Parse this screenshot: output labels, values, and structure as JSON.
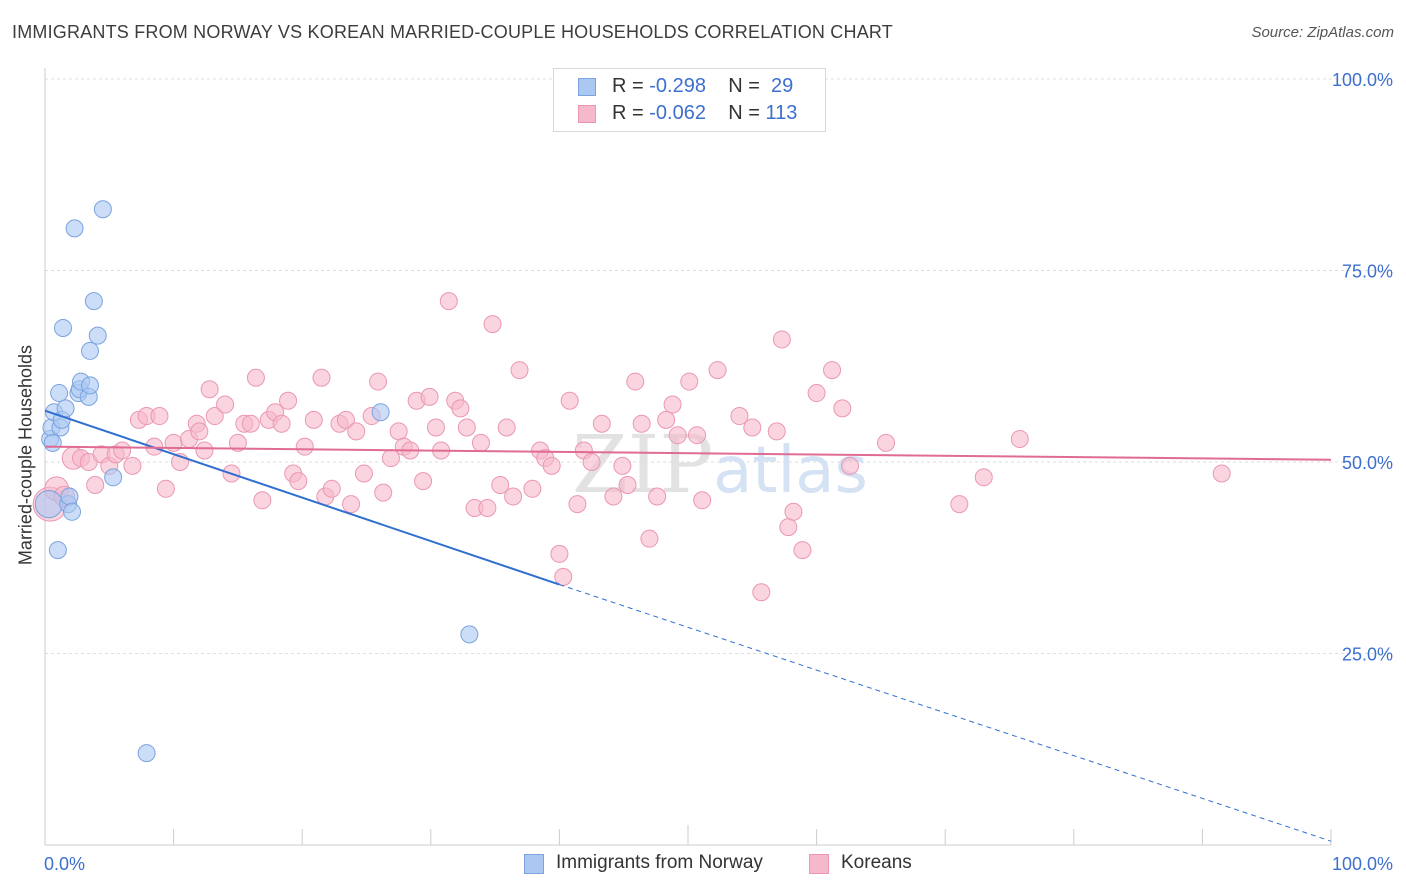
{
  "title": "IMMIGRANTS FROM NORWAY VS KOREAN MARRIED-COUPLE HOUSEHOLDS CORRELATION CHART",
  "source": "Source: ZipAtlas.com",
  "watermark": "ZIPatlas",
  "legend": {
    "rows": [
      {
        "r_label": "R =",
        "r_value": "-0.298",
        "n_label": "N =",
        "n_value": "29"
      },
      {
        "r_label": "R =",
        "r_value": "-0.062",
        "n_label": "N =",
        "n_value": "113"
      }
    ]
  },
  "bottom_legend": {
    "norway": "Immigrants from Norway",
    "koreans": "Koreans"
  },
  "colors": {
    "norway_fill": "#aac8f2",
    "norway_stroke": "#7aa3df",
    "norway_line": "#2f6fd0",
    "korean_fill": "#f6b9cc",
    "korean_stroke": "#eb97b2",
    "korean_line": "#e06c93",
    "tick_label": "#3d6fce",
    "grid": "#dddddd"
  },
  "chart_data": {
    "type": "scatter",
    "xlabel": "",
    "ylabel": "Married-couple Households",
    "x_range": [
      0,
      100
    ],
    "y_range": [
      0,
      100
    ],
    "x_tick_labels": [
      "0.0%",
      "100.0%"
    ],
    "y_tick_labels": [
      "100.0%",
      "75.0%",
      "50.0%",
      "25.0%"
    ],
    "y_ticks": [
      100,
      75,
      50,
      25
    ],
    "grid": true,
    "legend_position": "top-center",
    "series": [
      {
        "name": "Immigrants from Norway",
        "key": "norway",
        "r": -0.298,
        "n": 29,
        "points": [
          [
            0.3,
            44.5,
            1.6
          ],
          [
            0.4,
            53.0,
            1
          ],
          [
            0.5,
            54.5,
            1
          ],
          [
            0.6,
            52.5,
            1
          ],
          [
            0.7,
            56.5,
            1
          ],
          [
            1.0,
            38.5,
            1
          ],
          [
            1.1,
            59.0,
            1
          ],
          [
            1.2,
            54.5,
            1
          ],
          [
            1.3,
            55.5,
            1
          ],
          [
            1.4,
            67.5,
            1
          ],
          [
            1.6,
            57.0,
            1
          ],
          [
            1.8,
            44.5,
            1
          ],
          [
            1.9,
            45.5,
            1
          ],
          [
            2.1,
            43.5,
            1
          ],
          [
            2.3,
            80.5,
            1
          ],
          [
            2.6,
            59.0,
            1
          ],
          [
            2.7,
            59.5,
            1
          ],
          [
            2.8,
            60.5,
            1
          ],
          [
            3.4,
            58.5,
            1
          ],
          [
            3.5,
            60.0,
            1
          ],
          [
            3.5,
            64.5,
            1
          ],
          [
            3.8,
            71.0,
            1
          ],
          [
            4.1,
            66.5,
            1
          ],
          [
            4.5,
            83.0,
            1
          ],
          [
            5.3,
            48.0,
            1
          ],
          [
            7.9,
            12.0,
            1
          ],
          [
            26.1,
            56.5,
            1
          ],
          [
            33.0,
            27.5,
            1
          ]
        ]
      },
      {
        "name": "Koreans",
        "key": "korean",
        "r": -0.062,
        "n": 113,
        "points": [
          [
            0.4,
            44.5,
            2.0
          ],
          [
            0.9,
            46.5,
            1.4
          ],
          [
            1.5,
            45.5,
            1.2
          ],
          [
            2.2,
            50.5,
            1.3
          ],
          [
            2.8,
            50.5,
            1
          ],
          [
            3.4,
            50.0,
            1
          ],
          [
            3.9,
            47.0,
            1
          ],
          [
            4.4,
            51.0,
            1
          ],
          [
            5.0,
            49.5,
            1
          ],
          [
            5.5,
            51.0,
            1
          ],
          [
            6.0,
            51.5,
            1
          ],
          [
            6.8,
            49.5,
            1
          ],
          [
            7.3,
            55.5,
            1
          ],
          [
            7.9,
            56.0,
            1
          ],
          [
            8.5,
            52.0,
            1
          ],
          [
            8.9,
            56.0,
            1
          ],
          [
            9.4,
            46.5,
            1
          ],
          [
            10.0,
            52.5,
            1
          ],
          [
            10.5,
            50.0,
            1
          ],
          [
            11.2,
            53.0,
            1
          ],
          [
            11.8,
            55.0,
            1
          ],
          [
            12.0,
            54.0,
            1
          ],
          [
            12.4,
            51.5,
            1
          ],
          [
            12.8,
            59.5,
            1
          ],
          [
            13.2,
            56.0,
            1
          ],
          [
            14.0,
            57.5,
            1
          ],
          [
            14.5,
            48.5,
            1
          ],
          [
            15.0,
            52.5,
            1
          ],
          [
            15.5,
            55.0,
            1
          ],
          [
            16.0,
            55.0,
            1
          ],
          [
            16.4,
            61.0,
            1
          ],
          [
            16.9,
            45.0,
            1
          ],
          [
            17.4,
            55.5,
            1
          ],
          [
            17.9,
            56.5,
            1
          ],
          [
            18.4,
            55.0,
            1
          ],
          [
            18.9,
            58.0,
            1
          ],
          [
            19.3,
            48.5,
            1
          ],
          [
            19.7,
            47.5,
            1
          ],
          [
            20.2,
            52.0,
            1
          ],
          [
            20.9,
            55.5,
            1
          ],
          [
            21.5,
            61.0,
            1
          ],
          [
            21.8,
            45.5,
            1
          ],
          [
            22.3,
            46.5,
            1
          ],
          [
            22.9,
            55.0,
            1
          ],
          [
            23.4,
            55.5,
            1
          ],
          [
            23.8,
            44.5,
            1
          ],
          [
            24.2,
            54.0,
            1
          ],
          [
            24.8,
            48.5,
            1
          ],
          [
            25.4,
            56.0,
            1
          ],
          [
            25.9,
            60.5,
            1
          ],
          [
            26.3,
            46.0,
            1
          ],
          [
            26.9,
            50.5,
            1
          ],
          [
            27.5,
            54.0,
            1
          ],
          [
            27.9,
            52.0,
            1
          ],
          [
            28.4,
            51.5,
            1
          ],
          [
            28.9,
            58.0,
            1
          ],
          [
            29.4,
            47.5,
            1
          ],
          [
            29.9,
            58.5,
            1
          ],
          [
            30.4,
            54.5,
            1
          ],
          [
            30.8,
            51.5,
            1
          ],
          [
            31.4,
            71.0,
            1
          ],
          [
            31.9,
            58.0,
            1
          ],
          [
            32.3,
            57.0,
            1
          ],
          [
            32.8,
            54.5,
            1
          ],
          [
            33.4,
            44.0,
            1
          ],
          [
            33.9,
            52.5,
            1
          ],
          [
            34.4,
            44.0,
            1
          ],
          [
            34.8,
            68.0,
            1
          ],
          [
            35.4,
            47.0,
            1
          ],
          [
            35.9,
            54.5,
            1
          ],
          [
            36.4,
            45.5,
            1
          ],
          [
            36.9,
            62.0,
            1
          ],
          [
            37.9,
            46.5,
            1
          ],
          [
            38.5,
            51.5,
            1
          ],
          [
            38.9,
            50.5,
            1
          ],
          [
            39.4,
            49.5,
            1
          ],
          [
            40.0,
            38.0,
            1
          ],
          [
            40.3,
            35.0,
            1
          ],
          [
            40.8,
            58.0,
            1
          ],
          [
            41.4,
            44.5,
            1
          ],
          [
            41.9,
            51.5,
            1
          ],
          [
            42.5,
            50.0,
            1
          ],
          [
            43.3,
            55.0,
            1
          ],
          [
            44.2,
            45.5,
            1
          ],
          [
            44.9,
            49.5,
            1
          ],
          [
            45.3,
            47.0,
            1
          ],
          [
            45.9,
            60.5,
            1
          ],
          [
            46.4,
            55.0,
            1
          ],
          [
            47.0,
            40.0,
            1
          ],
          [
            47.6,
            45.5,
            1
          ],
          [
            48.3,
            55.5,
            1
          ],
          [
            48.8,
            57.5,
            1
          ],
          [
            49.2,
            53.5,
            1
          ],
          [
            50.1,
            60.5,
            1
          ],
          [
            50.7,
            53.5,
            1
          ],
          [
            51.1,
            45.0,
            1
          ],
          [
            52.3,
            62.0,
            1
          ],
          [
            54.0,
            56.0,
            1
          ],
          [
            55.0,
            54.5,
            1
          ],
          [
            55.7,
            33.0,
            1
          ],
          [
            56.9,
            54.0,
            1
          ],
          [
            57.3,
            66.0,
            1
          ],
          [
            57.8,
            41.5,
            1
          ],
          [
            58.2,
            43.5,
            1
          ],
          [
            58.9,
            38.5,
            1
          ],
          [
            60.0,
            59.0,
            1
          ],
          [
            61.2,
            62.0,
            1
          ],
          [
            62.0,
            57.0,
            1
          ],
          [
            62.6,
            49.5,
            1
          ],
          [
            65.4,
            52.5,
            1
          ],
          [
            71.1,
            44.5,
            1
          ],
          [
            73.0,
            48.0,
            1
          ],
          [
            75.8,
            53.0,
            1
          ],
          [
            91.5,
            48.5,
            1
          ]
        ]
      }
    ],
    "trend_lines": [
      {
        "series": "Immigrants from Norway",
        "x0": 0,
        "y0": 56.7,
        "x1": 40.0,
        "y1": 34.0,
        "dashed_to_x": 100,
        "dashed_to_y": 0.5
      },
      {
        "series": "Koreans",
        "x0": 0,
        "y0": 52.0,
        "x1": 100,
        "y1": 50.3
      }
    ]
  }
}
